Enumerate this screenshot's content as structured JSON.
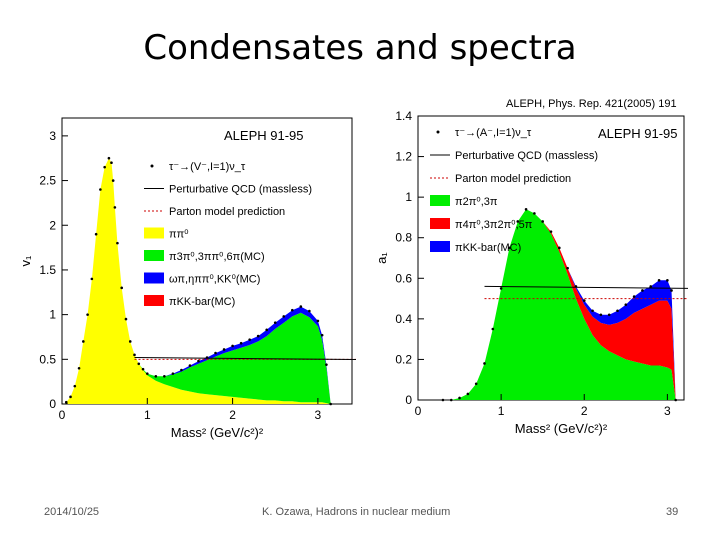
{
  "slide": {
    "title": "Condensates and spectra",
    "reference": "ALEPH, Phys. Rep. 421(2005) 191",
    "date": "2014/10/25",
    "author_line": "K. Ozawa, Hadrons in nuclear medium",
    "page_number": "39"
  },
  "chart_data": [
    {
      "type": "area",
      "panel": "vector",
      "experiment_label": "ALEPH 91-95",
      "xlabel": "Mass² (GeV/c²)²",
      "ylabel": "v₁",
      "xlim": [
        0,
        3.4
      ],
      "ylim": [
        0,
        3.2
      ],
      "x_ticks": [
        "0",
        "1",
        "2",
        "3"
      ],
      "y_ticks": [
        "0",
        "0.5",
        "1",
        "1.5",
        "2",
        "2.5",
        "3"
      ],
      "y_tick_values": [
        0,
        0.5,
        1,
        1.5,
        2,
        2.5,
        3
      ],
      "legend": [
        {
          "label": "τ⁻→(V⁻,I=1)ν_τ",
          "kind": "points",
          "color": "#000000"
        },
        {
          "label": "Perturbative QCD (massless)",
          "kind": "line",
          "color": "#000000"
        },
        {
          "label": "Parton model prediction",
          "kind": "dashed",
          "color": "#cc0000"
        },
        {
          "label": "ππ⁰",
          "kind": "fill",
          "color": "#ffff00"
        },
        {
          "label": "π3π⁰,3ππ⁰,6π(MC)",
          "kind": "fill",
          "color": "#00ee00"
        },
        {
          "label": "ωπ,ηππ⁰,KK⁰(MC)",
          "kind": "fill",
          "color": "#0000ff"
        },
        {
          "label": "πKK-bar(MC)",
          "kind": "fill",
          "color": "#ff0000"
        }
      ],
      "x": [
        0.05,
        0.1,
        0.15,
        0.2,
        0.25,
        0.3,
        0.35,
        0.4,
        0.45,
        0.5,
        0.55,
        0.58,
        0.6,
        0.62,
        0.65,
        0.7,
        0.75,
        0.8,
        0.85,
        0.9,
        0.95,
        1.0,
        1.1,
        1.2,
        1.3,
        1.4,
        1.5,
        1.6,
        1.7,
        1.8,
        1.9,
        2.0,
        2.1,
        2.2,
        2.3,
        2.4,
        2.5,
        2.6,
        2.7,
        2.8,
        2.9,
        3.0,
        3.05,
        3.1,
        3.15
      ],
      "series": [
        {
          "name": "ππ⁰",
          "values": [
            0.02,
            0.08,
            0.2,
            0.4,
            0.7,
            1.0,
            1.4,
            1.9,
            2.4,
            2.65,
            2.75,
            2.7,
            2.5,
            2.2,
            1.8,
            1.3,
            0.95,
            0.7,
            0.55,
            0.45,
            0.38,
            0.32,
            0.26,
            0.22,
            0.19,
            0.16,
            0.14,
            0.12,
            0.11,
            0.1,
            0.09,
            0.08,
            0.07,
            0.06,
            0.05,
            0.04,
            0.04,
            0.03,
            0.03,
            0.02,
            0.02,
            0.02,
            0.02,
            0.01,
            0.0
          ]
        },
        {
          "name": "π3π⁰,3ππ⁰,6π(MC)",
          "values": [
            0,
            0,
            0,
            0,
            0,
            0,
            0,
            0,
            0,
            0,
            0,
            0,
            0,
            0,
            0,
            0,
            0,
            0,
            0,
            0,
            0.01,
            0.02,
            0.05,
            0.09,
            0.14,
            0.2,
            0.27,
            0.33,
            0.38,
            0.43,
            0.48,
            0.52,
            0.56,
            0.6,
            0.65,
            0.72,
            0.8,
            0.88,
            0.95,
            1.0,
            0.95,
            0.85,
            0.7,
            0.4,
            0.0
          ]
        },
        {
          "name": "ωπ,ηππ⁰,KK⁰(MC)",
          "values": [
            0,
            0,
            0,
            0,
            0,
            0,
            0,
            0,
            0,
            0,
            0,
            0,
            0,
            0,
            0,
            0,
            0,
            0,
            0,
            0,
            0,
            0,
            0,
            0,
            0.01,
            0.02,
            0.02,
            0.03,
            0.03,
            0.04,
            0.04,
            0.05,
            0.05,
            0.06,
            0.06,
            0.07,
            0.07,
            0.07,
            0.07,
            0.07,
            0.07,
            0.06,
            0.05,
            0.03,
            0.0
          ]
        },
        {
          "name": "πKK-bar(MC)",
          "values": [
            0,
            0,
            0,
            0,
            0,
            0,
            0,
            0,
            0,
            0,
            0,
            0,
            0,
            0,
            0,
            0,
            0,
            0,
            0,
            0,
            0,
            0,
            0,
            0,
            0,
            0,
            0,
            0,
            0,
            0,
            0,
            0,
            0,
            0,
            0,
            0,
            0,
            0,
            0,
            0,
            0,
            0,
            0,
            0,
            0
          ]
        }
      ],
      "parton_model": 0.5,
      "perturbative_qcd": 0.52
    },
    {
      "type": "area",
      "panel": "axial",
      "experiment_label": "ALEPH 91-95",
      "xlabel": "Mass² (GeV/c²)²",
      "ylabel": "a₁",
      "xlim": [
        0,
        3.2
      ],
      "ylim": [
        0,
        1.4
      ],
      "x_ticks": [
        "0",
        "1",
        "2",
        "3"
      ],
      "y_ticks": [
        "0",
        "0.2",
        "0.4",
        "0.6",
        "0.8",
        "1",
        "1.2",
        "1.4"
      ],
      "y_tick_values": [
        0,
        0.2,
        0.4,
        0.6,
        0.8,
        1.0,
        1.2,
        1.4
      ],
      "legend": [
        {
          "label": "τ⁻→(A⁻,I=1)ν_τ",
          "kind": "points",
          "color": "#000000"
        },
        {
          "label": "Perturbative QCD (massless)",
          "kind": "line",
          "color": "#000000"
        },
        {
          "label": "Parton model prediction",
          "kind": "dashed",
          "color": "#cc0000"
        },
        {
          "label": "π2π⁰,3π",
          "kind": "fill",
          "color": "#00ee00"
        },
        {
          "label": "π4π⁰,3π2π⁰,5π",
          "kind": "fill",
          "color": "#ff0000"
        },
        {
          "label": "πKK-bar(MC)",
          "kind": "fill",
          "color": "#0000ff"
        }
      ],
      "x": [
        0.3,
        0.4,
        0.5,
        0.6,
        0.7,
        0.8,
        0.9,
        1.0,
        1.1,
        1.2,
        1.3,
        1.4,
        1.5,
        1.6,
        1.7,
        1.8,
        1.9,
        2.0,
        2.1,
        2.2,
        2.3,
        2.4,
        2.5,
        2.6,
        2.7,
        2.8,
        2.9,
        3.0,
        3.05,
        3.1
      ],
      "series": [
        {
          "name": "π2π⁰,3π",
          "values": [
            0.0,
            0.0,
            0.01,
            0.03,
            0.08,
            0.18,
            0.35,
            0.55,
            0.75,
            0.88,
            0.94,
            0.92,
            0.88,
            0.82,
            0.73,
            0.62,
            0.5,
            0.4,
            0.32,
            0.27,
            0.24,
            0.22,
            0.2,
            0.19,
            0.18,
            0.17,
            0.17,
            0.16,
            0.15,
            0.0
          ]
        },
        {
          "name": "π4π⁰,3π2π⁰,5π",
          "values": [
            0,
            0,
            0,
            0,
            0,
            0,
            0,
            0,
            0,
            0,
            0,
            0,
            0,
            0.01,
            0.02,
            0.03,
            0.05,
            0.07,
            0.09,
            0.11,
            0.13,
            0.16,
            0.2,
            0.24,
            0.27,
            0.3,
            0.32,
            0.33,
            0.3,
            0.0
          ]
        },
        {
          "name": "πKK-bar(MC)",
          "values": [
            0,
            0,
            0,
            0,
            0,
            0,
            0,
            0,
            0,
            0,
            0,
            0,
            0,
            0,
            0,
            0,
            0.01,
            0.02,
            0.03,
            0.04,
            0.05,
            0.06,
            0.07,
            0.08,
            0.09,
            0.09,
            0.1,
            0.1,
            0.09,
            0.0
          ]
        }
      ],
      "parton_model": 0.5,
      "perturbative_qcd": 0.56
    }
  ]
}
